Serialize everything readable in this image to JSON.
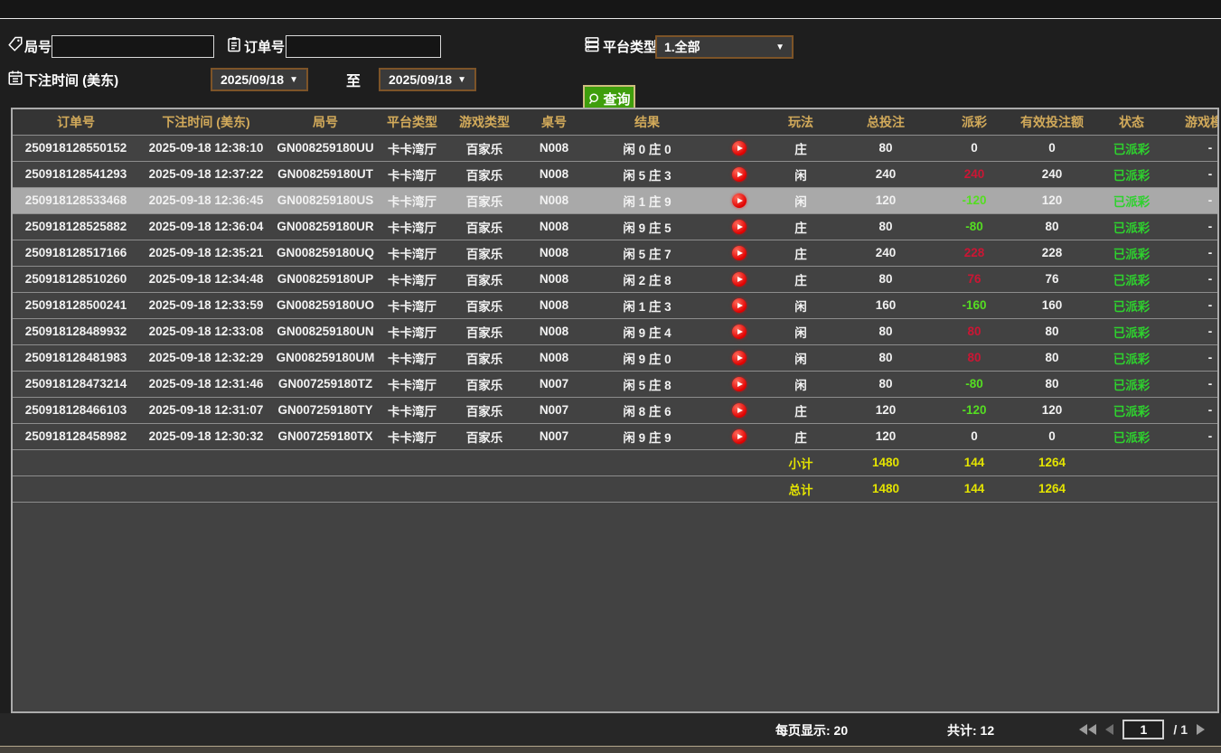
{
  "filters": {
    "round_label": "局号",
    "round_value": "",
    "order_label": "订单号",
    "order_value": "",
    "platform_label": "平台类型",
    "platform_value": "1.全部",
    "bet_time_label": "下注时间 (美东)",
    "date_from": "2025/09/18",
    "date_to": "2025/09/18",
    "to_label": "至",
    "query_label": "查询"
  },
  "table": {
    "headers": [
      "订单号",
      "下注时间 (美东)",
      "局号",
      "平台类型",
      "游戏类型",
      "桌号",
      "结果",
      "",
      "玩法",
      "总投注",
      "派彩",
      "有效投注额",
      "状态",
      "游戏模式"
    ],
    "rows": [
      {
        "order": "250918128550152",
        "time": "2025-09-18 12:38:10",
        "round": "GN008259180UU",
        "platform": "卡卡湾厅",
        "game": "百家乐",
        "table_no": "N008",
        "result": "闲 0 庄 0",
        "play": "庄",
        "total_bet": "80",
        "payout": "0",
        "valid_bet": "0",
        "status": "已派彩",
        "mode": "-",
        "selected": false
      },
      {
        "order": "250918128541293",
        "time": "2025-09-18 12:37:22",
        "round": "GN008259180UT",
        "platform": "卡卡湾厅",
        "game": "百家乐",
        "table_no": "N008",
        "result": "闲 5 庄 3",
        "play": "闲",
        "total_bet": "240",
        "payout": "240",
        "valid_bet": "240",
        "status": "已派彩",
        "mode": "-",
        "selected": false
      },
      {
        "order": "250918128533468",
        "time": "2025-09-18 12:36:45",
        "round": "GN008259180US",
        "platform": "卡卡湾厅",
        "game": "百家乐",
        "table_no": "N008",
        "result": "闲 1 庄 9",
        "play": "闲",
        "total_bet": "120",
        "payout": "-120",
        "valid_bet": "120",
        "status": "已派彩",
        "mode": "-",
        "selected": true
      },
      {
        "order": "250918128525882",
        "time": "2025-09-18 12:36:04",
        "round": "GN008259180UR",
        "platform": "卡卡湾厅",
        "game": "百家乐",
        "table_no": "N008",
        "result": "闲 9 庄 5",
        "play": "庄",
        "total_bet": "80",
        "payout": "-80",
        "valid_bet": "80",
        "status": "已派彩",
        "mode": "-",
        "selected": false
      },
      {
        "order": "250918128517166",
        "time": "2025-09-18 12:35:21",
        "round": "GN008259180UQ",
        "platform": "卡卡湾厅",
        "game": "百家乐",
        "table_no": "N008",
        "result": "闲 5 庄 7",
        "play": "庄",
        "total_bet": "240",
        "payout": "228",
        "valid_bet": "228",
        "status": "已派彩",
        "mode": "-",
        "selected": false
      },
      {
        "order": "250918128510260",
        "time": "2025-09-18 12:34:48",
        "round": "GN008259180UP",
        "platform": "卡卡湾厅",
        "game": "百家乐",
        "table_no": "N008",
        "result": "闲 2 庄 8",
        "play": "庄",
        "total_bet": "80",
        "payout": "76",
        "valid_bet": "76",
        "status": "已派彩",
        "mode": "-",
        "selected": false
      },
      {
        "order": "250918128500241",
        "time": "2025-09-18 12:33:59",
        "round": "GN008259180UO",
        "platform": "卡卡湾厅",
        "game": "百家乐",
        "table_no": "N008",
        "result": "闲 1 庄 3",
        "play": "闲",
        "total_bet": "160",
        "payout": "-160",
        "valid_bet": "160",
        "status": "已派彩",
        "mode": "-",
        "selected": false
      },
      {
        "order": "250918128489932",
        "time": "2025-09-18 12:33:08",
        "round": "GN008259180UN",
        "platform": "卡卡湾厅",
        "game": "百家乐",
        "table_no": "N008",
        "result": "闲 9 庄 4",
        "play": "闲",
        "total_bet": "80",
        "payout": "80",
        "valid_bet": "80",
        "status": "已派彩",
        "mode": "-",
        "selected": false
      },
      {
        "order": "250918128481983",
        "time": "2025-09-18 12:32:29",
        "round": "GN008259180UM",
        "platform": "卡卡湾厅",
        "game": "百家乐",
        "table_no": "N008",
        "result": "闲 9 庄 0",
        "play": "闲",
        "total_bet": "80",
        "payout": "80",
        "valid_bet": "80",
        "status": "已派彩",
        "mode": "-",
        "selected": false
      },
      {
        "order": "250918128473214",
        "time": "2025-09-18 12:31:46",
        "round": "GN007259180TZ",
        "platform": "卡卡湾厅",
        "game": "百家乐",
        "table_no": "N007",
        "result": "闲 5 庄 8",
        "play": "闲",
        "total_bet": "80",
        "payout": "-80",
        "valid_bet": "80",
        "status": "已派彩",
        "mode": "-",
        "selected": false
      },
      {
        "order": "250918128466103",
        "time": "2025-09-18 12:31:07",
        "round": "GN007259180TY",
        "platform": "卡卡湾厅",
        "game": "百家乐",
        "table_no": "N007",
        "result": "闲 8 庄 6",
        "play": "庄",
        "total_bet": "120",
        "payout": "-120",
        "valid_bet": "120",
        "status": "已派彩",
        "mode": "-",
        "selected": false
      },
      {
        "order": "250918128458982",
        "time": "2025-09-18 12:30:32",
        "round": "GN007259180TX",
        "platform": "卡卡湾厅",
        "game": "百家乐",
        "table_no": "N007",
        "result": "闲 9 庄 9",
        "play": "庄",
        "total_bet": "120",
        "payout": "0",
        "valid_bet": "0",
        "status": "已派彩",
        "mode": "-",
        "selected": false
      }
    ],
    "subtotal": {
      "label": "小计",
      "total_bet": "1480",
      "payout": "144",
      "valid_bet": "1264"
    },
    "total": {
      "label": "总计",
      "total_bet": "1480",
      "payout": "144",
      "valid_bet": "1264"
    }
  },
  "footer": {
    "page_size_label": "每页显示: 20",
    "total_label": "共计: 12",
    "page_value": "1",
    "page_total": "/  1"
  },
  "colors": {
    "header_gold": "#d2aa5a",
    "win_red": "#cb1634",
    "loss_green": "#55dd22",
    "status_green": "#2ed12e",
    "totals_yellow": "#e4e400",
    "query_green": "#3f9e0c",
    "picker_border_brown": "#7d5428",
    "selected_row_gray": "#a9a9a9"
  }
}
